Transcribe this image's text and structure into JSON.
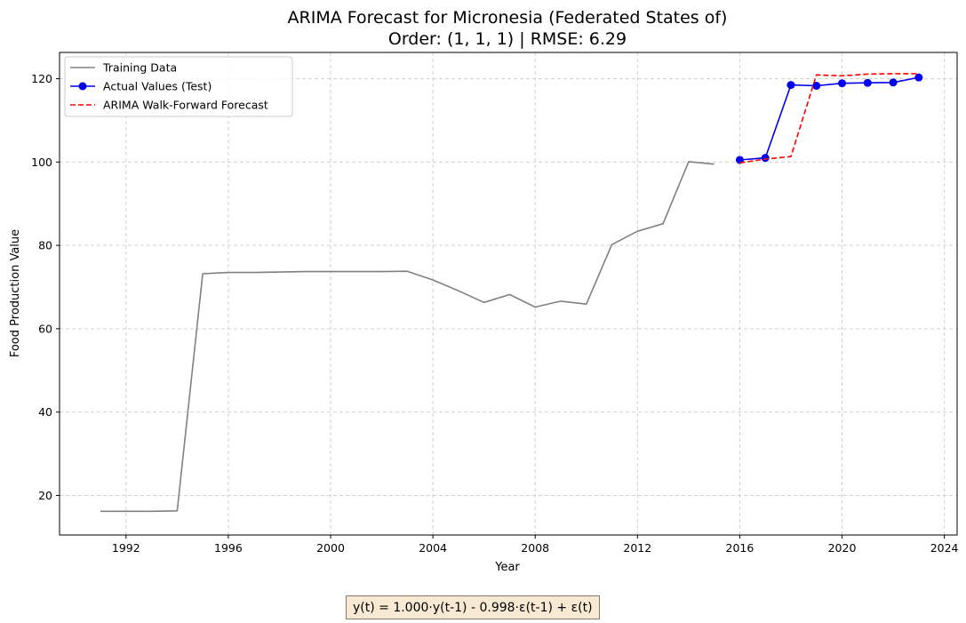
{
  "chart_data": {
    "type": "line",
    "title": "ARIMA Forecast for Micronesia (Federated States of)",
    "subtitle": "Order: (1, 1, 1) | RMSE: 6.29",
    "xlabel": "Year",
    "ylabel": "Food Production Value",
    "xlim": [
      1989.4,
      2024.5
    ],
    "ylim": [
      10.5,
      126.3
    ],
    "x_ticks": [
      1992,
      1996,
      2000,
      2004,
      2008,
      2012,
      2016,
      2020,
      2024
    ],
    "y_ticks": [
      20,
      40,
      60,
      80,
      100,
      120
    ],
    "grid": true,
    "legend_position": "top-left",
    "series": [
      {
        "name": "Training Data",
        "style": "solid",
        "color": "#808080",
        "markers": false,
        "x": [
          1991,
          1992,
          1993,
          1994,
          1995,
          1996,
          1997,
          1998,
          1999,
          2000,
          2001,
          2002,
          2003,
          2004,
          2005,
          2006,
          2007,
          2008,
          2009,
          2010,
          2011,
          2012,
          2013,
          2014,
          2015
        ],
        "y": [
          16.2,
          16.2,
          16.2,
          16.3,
          73.2,
          73.5,
          73.5,
          73.6,
          73.7,
          73.7,
          73.7,
          73.7,
          73.8,
          71.7,
          69.1,
          66.3,
          68.2,
          65.2,
          66.6,
          65.9,
          80.2,
          83.4,
          85.2,
          100.1,
          99.5
        ]
      },
      {
        "name": "Actual Values (Test)",
        "style": "solid",
        "color": "#0000ee",
        "markers": true,
        "x": [
          2016,
          2017,
          2018,
          2019,
          2020,
          2021,
          2022,
          2023
        ],
        "y": [
          100.5,
          101.0,
          118.5,
          118.3,
          118.9,
          119.0,
          119.1,
          120.3
        ]
      },
      {
        "name": "ARIMA Walk-Forward Forecast",
        "style": "dashed",
        "color": "#ff0000",
        "markers": false,
        "x": [
          2016,
          2017,
          2018,
          2019,
          2020,
          2021,
          2022,
          2023
        ],
        "y": [
          99.8,
          100.7,
          101.3,
          120.9,
          120.7,
          121.1,
          121.2,
          121.2
        ]
      }
    ]
  },
  "formula": "y(t) =  1.000·y(t-1) - 0.998·ε(t-1) + ε(t)"
}
